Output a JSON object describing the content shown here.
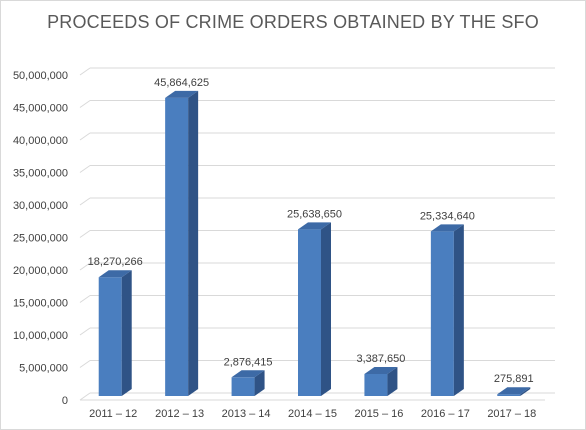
{
  "chart_data": {
    "type": "bar",
    "title": "PROCEEDS OF CRIME ORDERS OBTAINED BY THE SFO",
    "xlabel": "",
    "ylabel": "",
    "categories": [
      "2011 – 12",
      "2012 – 13",
      "2013 – 14",
      "2014 – 15",
      "2015 – 16",
      "2016 – 17",
      "2017 – 18"
    ],
    "values": [
      18270266,
      45864625,
      2876415,
      25638650,
      3387650,
      25334640,
      275891
    ],
    "data_labels": [
      "18,270,266",
      "45,864,625",
      "2,876,415",
      "25,638,650",
      "3,387,650",
      "25,334,640",
      "275,891"
    ],
    "ylim": [
      0,
      50000000
    ],
    "yticks": [
      0,
      5000000,
      10000000,
      15000000,
      20000000,
      25000000,
      30000000,
      35000000,
      40000000,
      45000000,
      50000000
    ],
    "ytick_labels": [
      "0",
      "5,000,000",
      "10,000,000",
      "15,000,000",
      "20,000,000",
      "25,000,000",
      "30,000,000",
      "35,000,000",
      "40,000,000",
      "45,000,000",
      "50,000,000"
    ],
    "style": "3d-column",
    "grid": true,
    "legend": "none",
    "colors": {
      "bar_front": "#4a7ebf",
      "bar_side": "#2f5386",
      "bar_top": "#3d6aa6",
      "grid": "#d9d9d9",
      "text": "#404040",
      "title": "#595959"
    }
  }
}
